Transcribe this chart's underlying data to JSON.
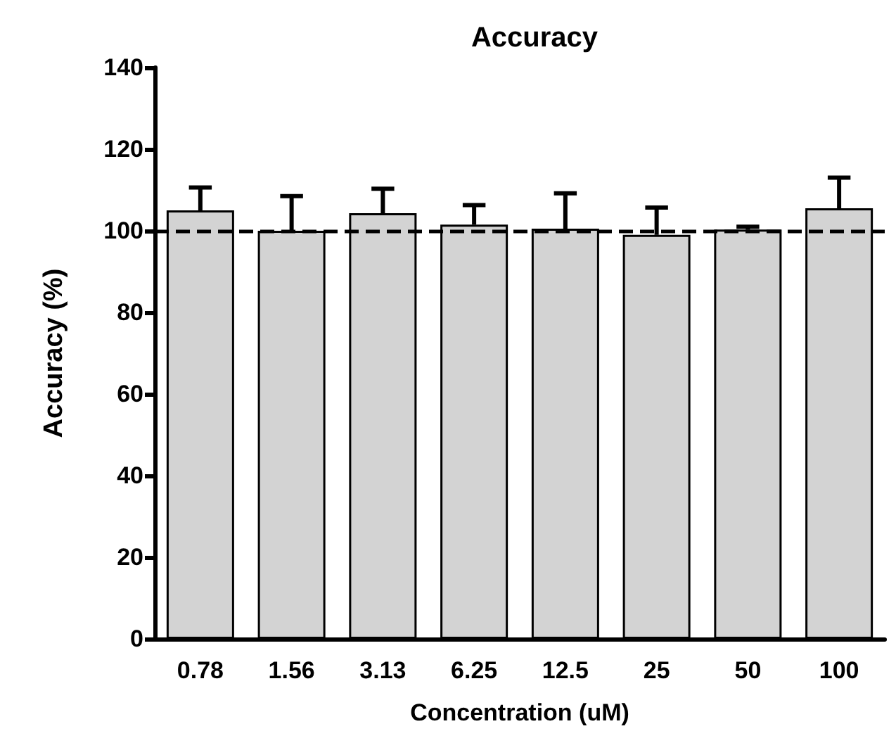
{
  "chart_data": {
    "type": "bar",
    "title": "Accuracy",
    "xlabel": "Concentration (uM)",
    "ylabel": "Accuracy (%)",
    "categories": [
      "0.78",
      "1.56",
      "3.13",
      "6.25",
      "12.5",
      "25",
      "50",
      "100"
    ],
    "values": [
      105,
      100,
      104.3,
      101.5,
      100.5,
      99,
      100.3,
      105.5
    ],
    "errors": [
      [
        105,
        110.6
      ],
      [
        100,
        108.5
      ],
      [
        104.3,
        110.3
      ],
      [
        101.5,
        106.3
      ],
      [
        100.5,
        109.2
      ],
      [
        99,
        105.7
      ],
      [
        100.3,
        101
      ],
      [
        105.5,
        113
      ]
    ],
    "color": "#d3d3d3",
    "ylim": [
      0,
      140
    ],
    "yticks": [
      0,
      20,
      40,
      60,
      80,
      100,
      120,
      140
    ],
    "ref_lines": [
      {
        "axis": "y",
        "value": 100,
        "line_style": "dashed",
        "color": "#000000"
      }
    ]
  }
}
